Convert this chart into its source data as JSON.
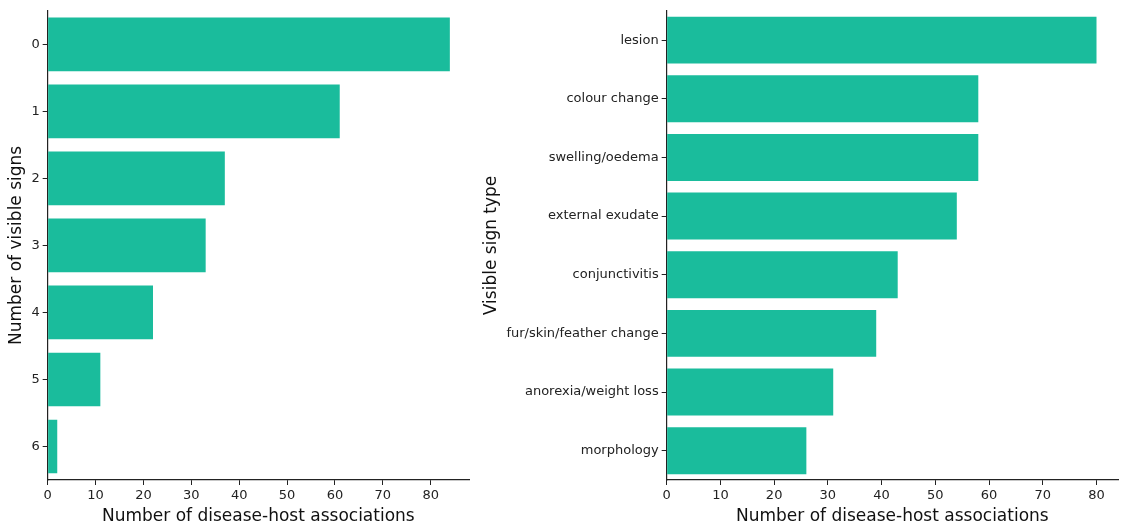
{
  "chart_data": [
    {
      "type": "bar",
      "orientation": "horizontal",
      "categories": [
        "0",
        "1",
        "2",
        "3",
        "4",
        "5",
        "6"
      ],
      "values": [
        84,
        61,
        37,
        33,
        22,
        11,
        2
      ],
      "color": "#1abc9c",
      "xlabel": "Number of disease-host associations",
      "ylabel": "Number of visible signs",
      "xlim": [
        0,
        88
      ],
      "xticks": [
        0,
        10,
        20,
        30,
        40,
        50,
        60,
        70,
        80
      ],
      "grid": false,
      "legend": false
    },
    {
      "type": "bar",
      "orientation": "horizontal",
      "categories": [
        "lesion",
        "colour change",
        "swelling/oedema",
        "external exudate",
        "conjunctivitis",
        "fur/skin/feather change",
        "anorexia/weight loss",
        "morphology"
      ],
      "values": [
        80,
        58,
        58,
        54,
        43,
        39,
        31,
        26
      ],
      "color": "#1abc9c",
      "xlabel": "Number of disease-host associations",
      "ylabel": "Visible sign type",
      "xlim": [
        0,
        84
      ],
      "xticks": [
        0,
        10,
        20,
        30,
        40,
        50,
        60,
        70,
        80
      ],
      "grid": false,
      "legend": false
    }
  ]
}
